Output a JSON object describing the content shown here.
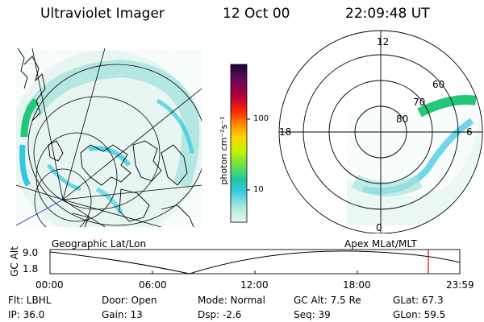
{
  "header": {
    "instrument": "Ultraviolet Imager",
    "date": "12 Oct 00",
    "time": "22:09:48 UT"
  },
  "colorbar": {
    "unit": "photon cm⁻²s⁻¹",
    "ticks": [
      "100",
      "10"
    ],
    "colors": [
      "#1a0033",
      "#5a0a5a",
      "#b0003a",
      "#ff2a00",
      "#ff8c00",
      "#ffd200",
      "#c8f000",
      "#6ae04a",
      "#20c8a0",
      "#30c8e0",
      "#a8e8e0",
      "#e8f8f0"
    ]
  },
  "polar_plot": {
    "mlt_labels": [
      "12",
      "18",
      "6",
      "0"
    ],
    "lat_labels": [
      "60",
      "70",
      "80"
    ]
  },
  "timeline": {
    "left_label": "Geographic Lat/Lon",
    "right_label": "Apex MLat/MLT",
    "y_axis_label": "GC Alt",
    "y_ticks": [
      "9.0",
      "1.8"
    ],
    "x_ticks": [
      "00:00",
      "06:00",
      "12:00",
      "18:00",
      "23:59"
    ],
    "current_time_marker": "22:09:48"
  },
  "info": {
    "flt": "Flt: LBHL",
    "ip": "IP: 36.0",
    "door": "Door: Open",
    "gain": "Gain: 13",
    "mode": "Mode: Normal",
    "dsp": "Dsp:    -2.6",
    "gcalt": "GC Alt: 7.5 Re",
    "seq": "Seq: 39",
    "glat": "GLat:  67.3",
    "glon": "GLon:  59.5"
  },
  "colors": {
    "aurora_bright": "#20c070",
    "aurora_mid": "#30c8e0",
    "aurora_faint": "#b8e8e0",
    "marker": "#e00000"
  }
}
